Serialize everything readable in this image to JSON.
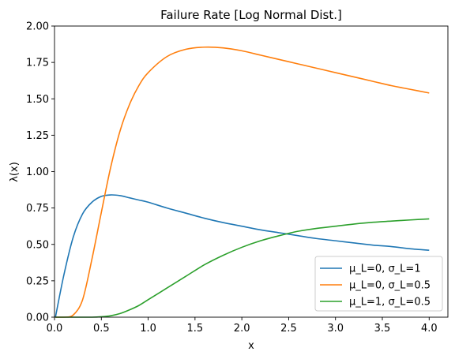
{
  "chart_data": {
    "type": "line",
    "title": "Failure Rate [Log Normal Dist.]",
    "xlabel": "x",
    "ylabel": "λ(x)",
    "xlim": [
      0,
      4.2
    ],
    "ylim": [
      0,
      2.0
    ],
    "xticks": [
      0.0,
      0.5,
      1.0,
      1.5,
      2.0,
      2.5,
      3.0,
      3.5,
      4.0
    ],
    "xtick_labels": [
      "0.0",
      "0.5",
      "1.0",
      "1.5",
      "2.0",
      "2.5",
      "3.0",
      "3.5",
      "4.0"
    ],
    "yticks": [
      0.0,
      0.25,
      0.5,
      0.75,
      1.0,
      1.25,
      1.5,
      1.75,
      2.0
    ],
    "ytick_labels": [
      "0.00",
      "0.25",
      "0.50",
      "0.75",
      "1.00",
      "1.25",
      "1.50",
      "1.75",
      "2.00"
    ],
    "grid": false,
    "legend_position": "bottom-right",
    "x": [
      0.01,
      0.1,
      0.2,
      0.3,
      0.4,
      0.5,
      0.6,
      0.7,
      0.8,
      0.9,
      1.0,
      1.2,
      1.4,
      1.6,
      1.8,
      2.0,
      2.2,
      2.4,
      2.6,
      2.8,
      3.0,
      3.2,
      3.4,
      3.6,
      3.8,
      4.0
    ],
    "series": [
      {
        "name": "μ_L=0, σ_L=1",
        "color": "#1f77b4",
        "values": [
          0.0,
          0.29,
          0.55,
          0.71,
          0.79,
          0.83,
          0.84,
          0.835,
          0.82,
          0.805,
          0.79,
          0.75,
          0.715,
          0.68,
          0.65,
          0.625,
          0.6,
          0.58,
          0.56,
          0.54,
          0.525,
          0.51,
          0.495,
          0.485,
          0.47,
          0.46
        ]
      },
      {
        "name": "μ_L=0, σ_L=0.5",
        "color": "#ff7f0e",
        "values": [
          0.0,
          0.0,
          0.015,
          0.12,
          0.4,
          0.72,
          1.03,
          1.28,
          1.46,
          1.59,
          1.68,
          1.79,
          1.84,
          1.855,
          1.85,
          1.83,
          1.8,
          1.77,
          1.74,
          1.71,
          1.68,
          1.65,
          1.62,
          1.59,
          1.565,
          1.54
        ]
      },
      {
        "name": "μ_L=1, σ_L=0.5",
        "color": "#2ca02c",
        "values": [
          0.0,
          0.0,
          0.0,
          0.0,
          0.0,
          0.003,
          0.01,
          0.025,
          0.05,
          0.08,
          0.12,
          0.2,
          0.28,
          0.36,
          0.425,
          0.48,
          0.525,
          0.56,
          0.59,
          0.61,
          0.625,
          0.64,
          0.652,
          0.66,
          0.668,
          0.675
        ]
      }
    ]
  }
}
